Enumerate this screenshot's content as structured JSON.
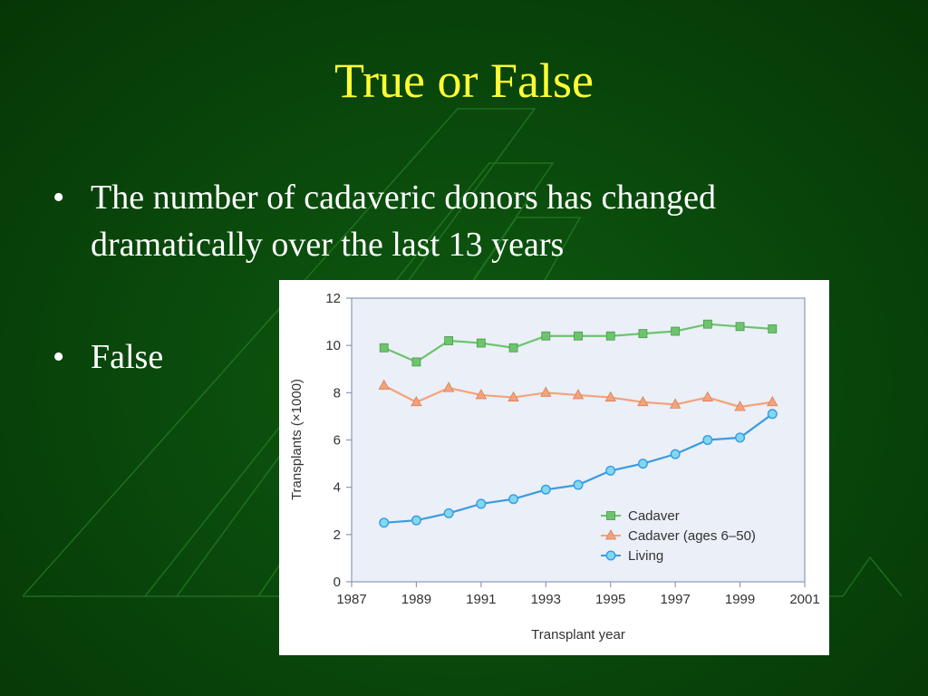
{
  "slide": {
    "title": "True or False",
    "bullets": [
      "The number of cadaveric donors has changed dramatically over the last 13 years",
      "False"
    ]
  },
  "chart_data": {
    "type": "line",
    "title": "",
    "xlabel": "Transplant year",
    "ylabel": "Transplants (×1000)",
    "xlim": [
      1987,
      2001
    ],
    "ylim": [
      0,
      12
    ],
    "xticks": [
      1987,
      1989,
      1991,
      1993,
      1995,
      1997,
      1999,
      2001
    ],
    "yticks": [
      0,
      2,
      4,
      6,
      8,
      10,
      12
    ],
    "grid": false,
    "legend_position": "bottom-right",
    "x": [
      1988,
      1989,
      1990,
      1991,
      1992,
      1993,
      1994,
      1995,
      1996,
      1997,
      1998,
      1999,
      2000
    ],
    "series": [
      {
        "name": "Cadaver",
        "marker": "square",
        "color": "#6cc46c",
        "values": [
          9.9,
          9.3,
          10.2,
          10.1,
          9.9,
          10.4,
          10.4,
          10.4,
          10.5,
          10.6,
          10.9,
          10.8,
          10.7
        ]
      },
      {
        "name": "Cadaver (ages 6–50)",
        "marker": "triangle",
        "color": "#f4a27a",
        "values": [
          8.3,
          7.6,
          8.2,
          7.9,
          7.8,
          8.0,
          7.9,
          7.8,
          7.6,
          7.5,
          7.8,
          7.4,
          7.6
        ]
      },
      {
        "name": "Living",
        "marker": "circle",
        "color": "#3a9be0",
        "values": [
          2.5,
          2.6,
          2.9,
          3.3,
          3.5,
          3.9,
          4.1,
          4.7,
          5.0,
          5.4,
          6.0,
          6.1,
          7.1
        ]
      }
    ]
  }
}
